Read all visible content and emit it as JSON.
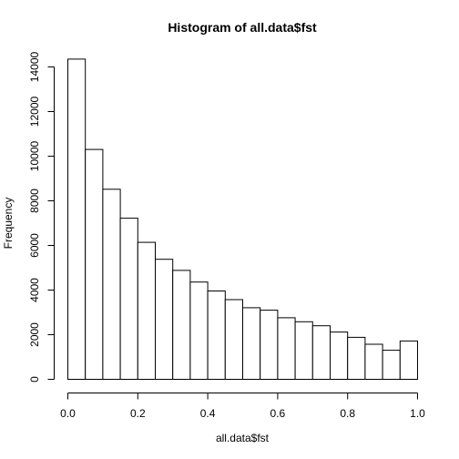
{
  "chart_data": {
    "type": "bar",
    "title": "Histogram of all.data$fst",
    "xlabel": "all.data$fst",
    "ylabel": "Frequency",
    "xlim": [
      0,
      1
    ],
    "ylim": [
      0,
      14000
    ],
    "grid": false,
    "bin_edges": [
      0.0,
      0.05,
      0.1,
      0.15,
      0.2,
      0.25,
      0.3,
      0.35,
      0.4,
      0.45,
      0.5,
      0.55,
      0.6,
      0.65,
      0.7,
      0.75,
      0.8,
      0.85,
      0.9,
      0.95,
      1.0
    ],
    "values": [
      14350,
      10300,
      8520,
      7220,
      6140,
      5380,
      4880,
      4360,
      3960,
      3570,
      3210,
      3100,
      2760,
      2580,
      2400,
      2120,
      1880,
      1570,
      1300,
      1720
    ],
    "x_ticks": [
      0.0,
      0.2,
      0.4,
      0.6,
      0.8,
      1.0
    ],
    "x_tick_labels": [
      "0.0",
      "0.2",
      "0.4",
      "0.6",
      "0.8",
      "1.0"
    ],
    "y_ticks": [
      0,
      2000,
      4000,
      6000,
      8000,
      10000,
      12000,
      14000
    ],
    "y_tick_labels": [
      "0",
      "2000",
      "4000",
      "6000",
      "8000",
      "10000",
      "12000",
      "14000"
    ]
  }
}
